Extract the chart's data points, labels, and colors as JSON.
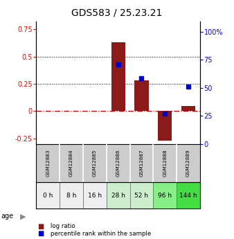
{
  "title": "GDS583 / 25.23.21",
  "categories": [
    "GSM12883",
    "GSM12884",
    "GSM12885",
    "GSM12886",
    "GSM12887",
    "GSM12888",
    "GSM12889"
  ],
  "age_labels": [
    "0 h",
    "8 h",
    "16 h",
    "28 h",
    "52 h",
    "96 h",
    "144 h"
  ],
  "log_ratio": [
    0.0,
    0.0,
    0.0,
    0.63,
    0.28,
    -0.27,
    0.05
  ],
  "percentile_rank_pct": [
    null,
    null,
    null,
    71,
    58.5,
    27,
    51
  ],
  "ylim_left": [
    -0.3,
    0.82
  ],
  "ylim_right": [
    0,
    109
  ],
  "yticks_left": [
    -0.25,
    0.0,
    0.25,
    0.5,
    0.75
  ],
  "ytick_labels_left": [
    "-0.25",
    "0",
    "0.25",
    "0.5",
    "0.75"
  ],
  "yticks_right": [
    0,
    25,
    50,
    75,
    100
  ],
  "ytick_labels_right": [
    "0",
    "25",
    "50",
    "75",
    "100%"
  ],
  "bar_color": "#8B1A1A",
  "dot_color": "#0000CC",
  "grid_dotted_values": [
    0.25,
    0.5
  ],
  "zero_line_color": "#CC0000",
  "bg_color": "#FFFFFF",
  "age_row_colors": [
    "#EEEEEE",
    "#EEEEEE",
    "#EEEEEE",
    "#CCEECC",
    "#CCEECC",
    "#88EE88",
    "#44DD44"
  ],
  "sample_row_color": "#CCCCCC",
  "legend_items": [
    {
      "color": "#8B1A1A",
      "label": "log ratio"
    },
    {
      "color": "#0000CC",
      "label": "percentile rank within the sample"
    }
  ]
}
